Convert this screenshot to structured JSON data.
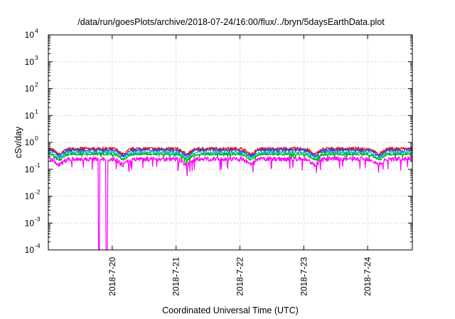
{
  "chart_data": {
    "type": "line",
    "title": "/data/run/goesPlots/archive/2018-07-24/16:00/flux/../bryn/5daysEarthData.plot",
    "xlabel": "Coordinated Universal Time (UTC)",
    "ylabel": "cSv/day",
    "y_scale": "log",
    "ylim": [
      0.0001,
      10000
    ],
    "xlim": [
      0.0,
      5.7
    ],
    "grid": true,
    "y_ticks": [
      {
        "value": 0.0001,
        "base": "10",
        "exp": "-4"
      },
      {
        "value": 0.001,
        "base": "10",
        "exp": "-3"
      },
      {
        "value": 0.01,
        "base": "10",
        "exp": "-2"
      },
      {
        "value": 0.1,
        "base": "10",
        "exp": "-1"
      },
      {
        "value": 1,
        "base": "10",
        "exp": "0"
      },
      {
        "value": 10,
        "base": "10",
        "exp": "1"
      },
      {
        "value": 100,
        "base": "10",
        "exp": "2"
      },
      {
        "value": 1000,
        "base": "10",
        "exp": "3"
      },
      {
        "value": 10000,
        "base": "10",
        "exp": "4"
      }
    ],
    "x_ticks": [
      {
        "value": 1.0,
        "label": "2018-7-20"
      },
      {
        "value": 2.0,
        "label": "2018-7-21"
      },
      {
        "value": 3.0,
        "label": "2018-7-22"
      },
      {
        "value": 4.0,
        "label": "2018-7-23"
      },
      {
        "value": 5.0,
        "label": "2018-7-24"
      }
    ],
    "series": [
      {
        "color": "#ff0000",
        "base": 0.58,
        "noise": 0.13
      },
      {
        "color": "#2b4fd6",
        "base": 0.52,
        "noise": 0.12
      },
      {
        "color": "#00c0c0",
        "base": 0.42,
        "noise": 0.1
      },
      {
        "color": "#00b000",
        "base": 0.36,
        "noise": 0.08
      },
      {
        "color": "#ff00ff",
        "base": 0.24,
        "noise": 0.18,
        "dropouts": [
          [
            0.78,
            0.8
          ],
          [
            0.9,
            0.93
          ]
        ]
      }
    ]
  }
}
